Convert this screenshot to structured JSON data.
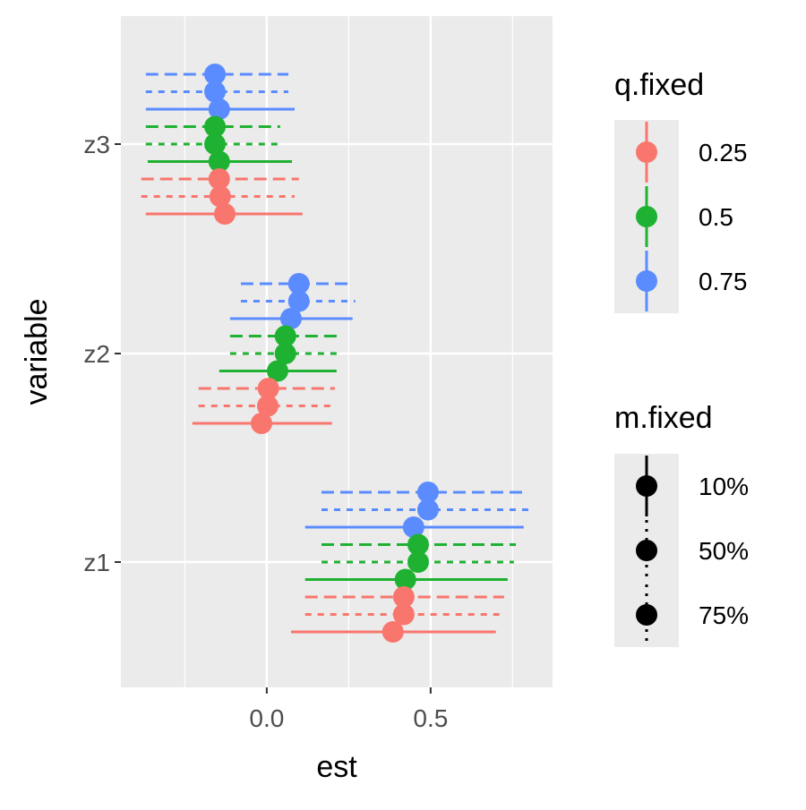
{
  "chart_data": {
    "type": "dot-and-whisker",
    "xlabel": "est",
    "ylabel": "variable",
    "xlim": [
      -0.445,
      0.872
    ],
    "x_ticks": [
      {
        "value": 0.0,
        "label": "0.0"
      },
      {
        "value": 0.5,
        "label": "0.5"
      }
    ],
    "x_minor": [
      -0.25,
      0.25,
      0.75
    ],
    "categories": [
      "z1",
      "z2",
      "z3"
    ],
    "grid": true,
    "legend_position": "right",
    "legends": [
      {
        "title": "q.fixed",
        "entries": [
          {
            "label": "0.25",
            "color": "#F8766D"
          },
          {
            "label": "0.5",
            "color": "#1FB232"
          },
          {
            "label": "0.75",
            "color": "#5B8CFF"
          }
        ]
      },
      {
        "title": "m.fixed",
        "entries": [
          {
            "label": "10%",
            "dash": "solid"
          },
          {
            "label": "50%",
            "dash": "short-dash"
          },
          {
            "label": "75%",
            "dash": "long-dash"
          }
        ]
      }
    ],
    "series": [
      {
        "variable": "z3",
        "q": "0.75",
        "m": "75%",
        "est": -0.158,
        "lo": -0.369,
        "hi": 0.066
      },
      {
        "variable": "z3",
        "q": "0.75",
        "m": "50%",
        "est": -0.158,
        "lo": -0.369,
        "hi": 0.066
      },
      {
        "variable": "z3",
        "q": "0.75",
        "m": "10%",
        "est": -0.145,
        "lo": -0.369,
        "hi": 0.085
      },
      {
        "variable": "z3",
        "q": "0.5",
        "m": "75%",
        "est": -0.158,
        "lo": -0.369,
        "hi": 0.041
      },
      {
        "variable": "z3",
        "q": "0.5",
        "m": "50%",
        "est": -0.158,
        "lo": -0.369,
        "hi": 0.041
      },
      {
        "variable": "z3",
        "q": "0.5",
        "m": "10%",
        "est": -0.145,
        "lo": -0.363,
        "hi": 0.077
      },
      {
        "variable": "z3",
        "q": "0.25",
        "m": "75%",
        "est": -0.145,
        "lo": -0.383,
        "hi": 0.098
      },
      {
        "variable": "z3",
        "q": "0.25",
        "m": "50%",
        "est": -0.142,
        "lo": -0.383,
        "hi": 0.085
      },
      {
        "variable": "z3",
        "q": "0.25",
        "m": "10%",
        "est": -0.128,
        "lo": -0.369,
        "hi": 0.109
      },
      {
        "variable": "z2",
        "q": "0.75",
        "m": "75%",
        "est": 0.098,
        "lo": -0.079,
        "hi": 0.262
      },
      {
        "variable": "z2",
        "q": "0.75",
        "m": "50%",
        "est": 0.098,
        "lo": -0.079,
        "hi": 0.27
      },
      {
        "variable": "z2",
        "q": "0.75",
        "m": "10%",
        "est": 0.074,
        "lo": -0.112,
        "hi": 0.262
      },
      {
        "variable": "z2",
        "q": "0.5",
        "m": "75%",
        "est": 0.057,
        "lo": -0.112,
        "hi": 0.221
      },
      {
        "variable": "z2",
        "q": "0.5",
        "m": "50%",
        "est": 0.057,
        "lo": -0.112,
        "hi": 0.227
      },
      {
        "variable": "z2",
        "q": "0.5",
        "m": "10%",
        "est": 0.033,
        "lo": -0.145,
        "hi": 0.213
      },
      {
        "variable": "z2",
        "q": "0.25",
        "m": "75%",
        "est": 0.005,
        "lo": -0.208,
        "hi": 0.208
      },
      {
        "variable": "z2",
        "q": "0.25",
        "m": "50%",
        "est": 0.003,
        "lo": -0.208,
        "hi": 0.199
      },
      {
        "variable": "z2",
        "q": "0.25",
        "m": "10%",
        "est": -0.016,
        "lo": -0.227,
        "hi": 0.199
      },
      {
        "variable": "z1",
        "q": "0.75",
        "m": "75%",
        "est": 0.492,
        "lo": 0.167,
        "hi": 0.798
      },
      {
        "variable": "z1",
        "q": "0.75",
        "m": "50%",
        "est": 0.492,
        "lo": 0.167,
        "hi": 0.814
      },
      {
        "variable": "z1",
        "q": "0.75",
        "m": "10%",
        "est": 0.448,
        "lo": 0.117,
        "hi": 0.784
      },
      {
        "variable": "z1",
        "q": "0.5",
        "m": "75%",
        "est": 0.462,
        "lo": 0.167,
        "hi": 0.76
      },
      {
        "variable": "z1",
        "q": "0.5",
        "m": "50%",
        "est": 0.462,
        "lo": 0.167,
        "hi": 0.754
      },
      {
        "variable": "z1",
        "q": "0.5",
        "m": "10%",
        "est": 0.423,
        "lo": 0.117,
        "hi": 0.735
      },
      {
        "variable": "z1",
        "q": "0.25",
        "m": "75%",
        "est": 0.418,
        "lo": 0.117,
        "hi": 0.724
      },
      {
        "variable": "z1",
        "q": "0.25",
        "m": "50%",
        "est": 0.418,
        "lo": 0.117,
        "hi": 0.724
      },
      {
        "variable": "z1",
        "q": "0.25",
        "m": "10%",
        "est": 0.385,
        "lo": 0.074,
        "hi": 0.699
      }
    ]
  }
}
